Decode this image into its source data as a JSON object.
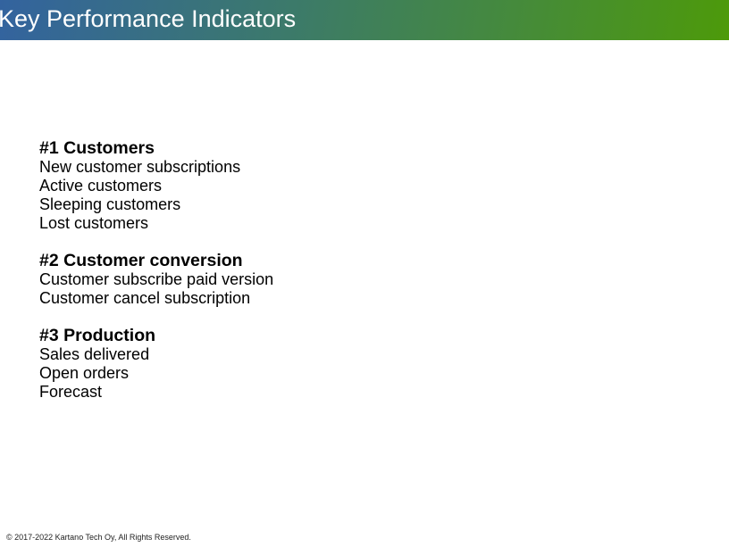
{
  "header": {
    "title": "Key Performance Indicators",
    "gradient_start": "#33639f",
    "gradient_end": "#4d9a0a"
  },
  "sections": [
    {
      "heading": "#1 Customers",
      "items": [
        "New customer subscriptions",
        "Active customers",
        "Sleeping customers",
        "Lost customers"
      ]
    },
    {
      "heading": "#2 Customer conversion",
      "items": [
        "Customer subscribe paid version",
        "Customer cancel subscription"
      ]
    },
    {
      "heading": "#3 Production",
      "items": [
        "Sales delivered",
        "Open orders",
        "Forecast"
      ]
    }
  ],
  "footer": {
    "copyright": "© 2017-2022 Kartano Tech Oy, All Rights Reserved."
  }
}
